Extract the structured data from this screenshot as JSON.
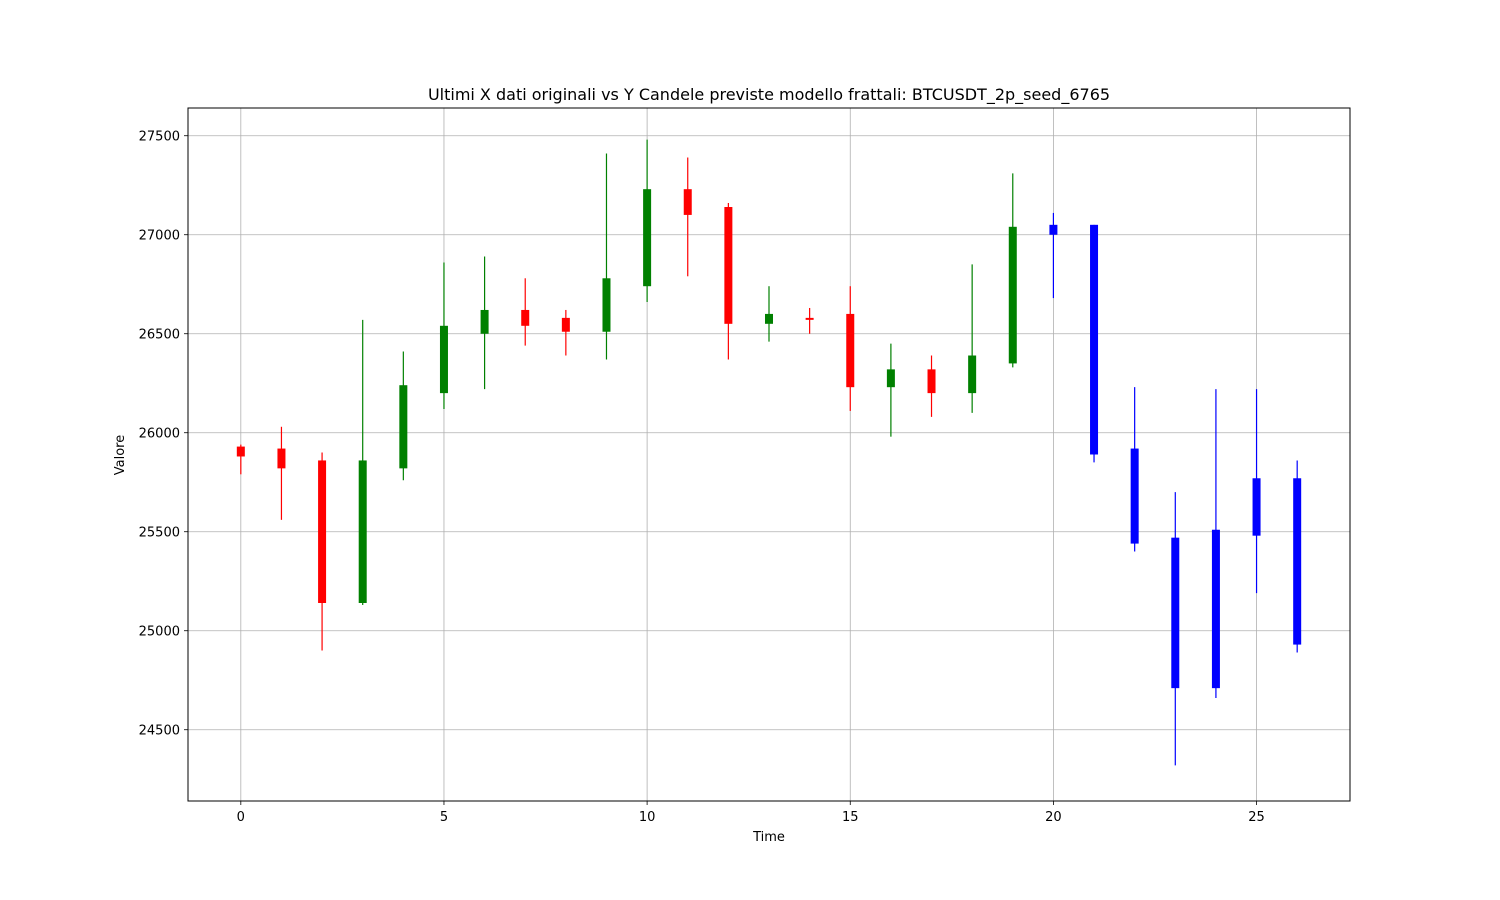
{
  "chart_data": {
    "type": "candlestick",
    "title": "Ultimi X dati originali vs Y Candele previste modello frattali: BTCUSDT_2p_seed_6765",
    "xlabel": "Time",
    "ylabel": "Valore",
    "xlim": [
      -1.3,
      27.3
    ],
    "ylim": [
      24140,
      27640
    ],
    "xticks": [
      0,
      5,
      10,
      15,
      20,
      25
    ],
    "yticks": [
      24500,
      25000,
      25500,
      26000,
      26500,
      27000,
      27500
    ],
    "grid": true,
    "colors": {
      "up": "#008000",
      "down": "#ff0000",
      "forecast": "#0000ff"
    },
    "candles": [
      {
        "x": 0,
        "open": 25930,
        "high": 25940,
        "low": 25790,
        "close": 25880,
        "kind": "original"
      },
      {
        "x": 1,
        "open": 25920,
        "high": 26030,
        "low": 25560,
        "close": 25820,
        "kind": "original"
      },
      {
        "x": 2,
        "open": 25860,
        "high": 25900,
        "low": 24900,
        "close": 25140,
        "kind": "original"
      },
      {
        "x": 3,
        "open": 25140,
        "high": 26570,
        "low": 25130,
        "close": 25860,
        "kind": "original"
      },
      {
        "x": 4,
        "open": 25820,
        "high": 26410,
        "low": 25760,
        "close": 26240,
        "kind": "original"
      },
      {
        "x": 5,
        "open": 26200,
        "high": 26860,
        "low": 26120,
        "close": 26540,
        "kind": "original"
      },
      {
        "x": 6,
        "open": 26500,
        "high": 26890,
        "low": 26220,
        "close": 26620,
        "kind": "original"
      },
      {
        "x": 7,
        "open": 26620,
        "high": 26780,
        "low": 26440,
        "close": 26540,
        "kind": "original"
      },
      {
        "x": 8,
        "open": 26580,
        "high": 26620,
        "low": 26390,
        "close": 26510,
        "kind": "original"
      },
      {
        "x": 9,
        "open": 26510,
        "high": 27410,
        "low": 26370,
        "close": 26780,
        "kind": "original"
      },
      {
        "x": 10,
        "open": 26740,
        "high": 27480,
        "low": 26660,
        "close": 27230,
        "kind": "original"
      },
      {
        "x": 11,
        "open": 27230,
        "high": 27390,
        "low": 26790,
        "close": 27100,
        "kind": "original"
      },
      {
        "x": 12,
        "open": 27140,
        "high": 27160,
        "low": 26370,
        "close": 26550,
        "kind": "original"
      },
      {
        "x": 13,
        "open": 26550,
        "high": 26740,
        "low": 26460,
        "close": 26600,
        "kind": "original"
      },
      {
        "x": 14,
        "open": 26580,
        "high": 26630,
        "low": 26500,
        "close": 26570,
        "kind": "original"
      },
      {
        "x": 15,
        "open": 26600,
        "high": 26740,
        "low": 26110,
        "close": 26230,
        "kind": "original"
      },
      {
        "x": 16,
        "open": 26230,
        "high": 26450,
        "low": 25980,
        "close": 26320,
        "kind": "original"
      },
      {
        "x": 17,
        "open": 26320,
        "high": 26390,
        "low": 26080,
        "close": 26200,
        "kind": "original"
      },
      {
        "x": 18,
        "open": 26200,
        "high": 26850,
        "low": 26100,
        "close": 26390,
        "kind": "original"
      },
      {
        "x": 19,
        "open": 26350,
        "high": 27310,
        "low": 26330,
        "close": 27040,
        "kind": "original"
      },
      {
        "x": 20,
        "open": 27050,
        "high": 27110,
        "low": 26680,
        "close": 27000,
        "kind": "forecast"
      },
      {
        "x": 21,
        "open": 27050,
        "high": 27050,
        "low": 25850,
        "close": 25890,
        "kind": "forecast"
      },
      {
        "x": 22,
        "open": 25920,
        "high": 26230,
        "low": 25400,
        "close": 25440,
        "kind": "forecast"
      },
      {
        "x": 23,
        "open": 25470,
        "high": 25700,
        "low": 24320,
        "close": 24710,
        "kind": "forecast"
      },
      {
        "x": 24,
        "open": 25510,
        "high": 26220,
        "low": 24660,
        "close": 24710,
        "kind": "forecast"
      },
      {
        "x": 25,
        "open": 25480,
        "high": 26220,
        "low": 25190,
        "close": 25770,
        "kind": "forecast"
      },
      {
        "x": 26,
        "open": 25770,
        "high": 25860,
        "low": 24890,
        "close": 24930,
        "kind": "forecast"
      }
    ]
  }
}
